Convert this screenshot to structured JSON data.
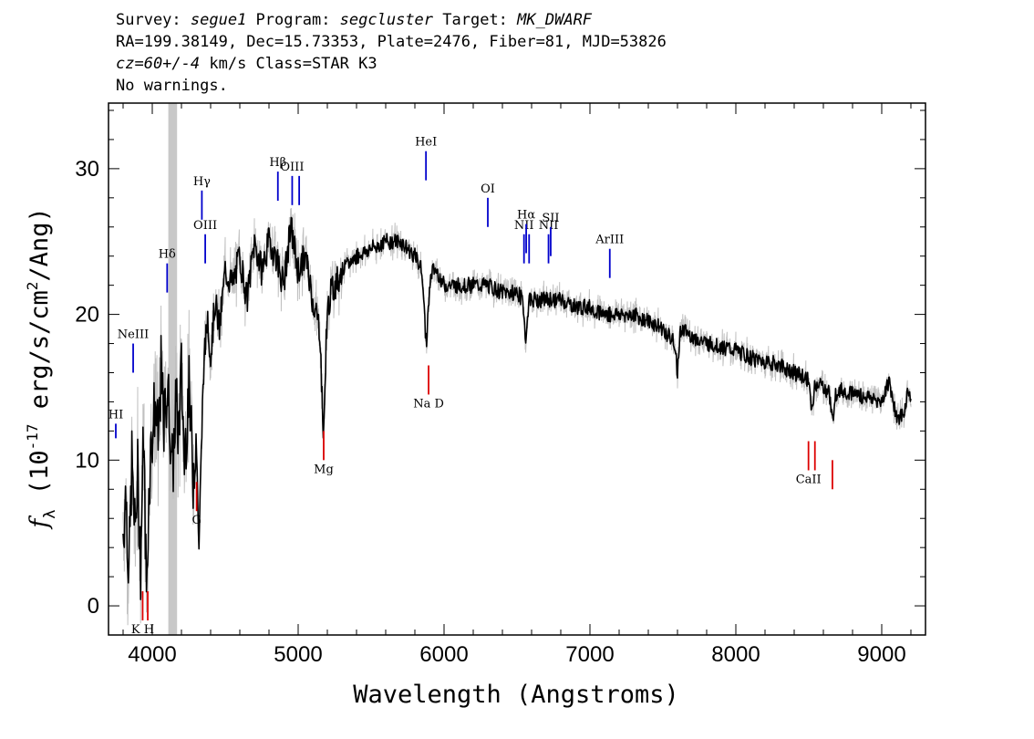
{
  "header": {
    "line1": {
      "survey_label": "Survey: ",
      "survey": "segue1",
      "program_label": " Program: ",
      "program": "segcluster",
      "target_label": " Target: ",
      "target": "MK_DWARF"
    },
    "line2": "RA=199.38149, Dec=15.73353, Plate=2476, Fiber=81, MJD=53826",
    "line3": {
      "cz": "cz=60+/-4",
      "rest": " km/s Class=STAR K3"
    },
    "line4": "No warnings."
  },
  "chart_data": {
    "type": "line",
    "xlabel": "Wavelength (Angstroms)",
    "ylabel_parts": {
      "f": "f",
      "sub": "λ",
      "open": " (10",
      "exp1": "-17",
      "mid": " erg/s/cm",
      "exp2": "2",
      "close": "/Ang)"
    },
    "xlim": [
      3700,
      9300
    ],
    "ylim": [
      -2,
      34.5
    ],
    "x_ticks": [
      4000,
      5000,
      6000,
      7000,
      8000,
      9000
    ],
    "x_tick_labels": [
      "4000",
      "5000",
      "6000",
      "7000",
      "8000",
      "9000"
    ],
    "y_ticks": [
      0,
      10,
      20,
      30
    ],
    "y_tick_labels": [
      "0",
      "10",
      "20",
      "30"
    ],
    "masked_band": [
      4110,
      4170
    ],
    "colors": {
      "flux": "#000000",
      "error": "#c0c0c0",
      "emission": "#0000cc",
      "absorption": "#dd0000",
      "mask": "#c8c8c8"
    },
    "series": [
      {
        "role": "flux",
        "x": [
          3800,
          3820,
          3840,
          3860,
          3880,
          3900,
          3920,
          3940,
          3960,
          3980,
          4000,
          4020,
          4040,
          4060,
          4080,
          4100,
          4120,
          4140,
          4160,
          4180,
          4200,
          4220,
          4250,
          4280,
          4300,
          4320,
          4350,
          4380,
          4400,
          4430,
          4460,
          4500,
          4550,
          4600,
          4650,
          4700,
          4750,
          4800,
          4850,
          4900,
          4950,
          5000,
          5050,
          5100,
          5150,
          5170,
          5180,
          5190,
          5210,
          5250,
          5300,
          5400,
          5500,
          5600,
          5700,
          5800,
          5850,
          5870,
          5880,
          5890,
          5900,
          5920,
          5950,
          6000,
          6100,
          6200,
          6300,
          6400,
          6500,
          6540,
          6562,
          6580,
          6600,
          6700,
          6800,
          6900,
          7000,
          7100,
          7200,
          7300,
          7400,
          7500,
          7580,
          7600,
          7620,
          7700,
          7800,
          7900,
          8000,
          8100,
          8200,
          8300,
          8400,
          8500,
          8520,
          8540,
          8560,
          8600,
          8640,
          8662,
          8680,
          8700,
          8800,
          8900,
          9000,
          9050,
          9100,
          9150,
          9180,
          9200
        ],
        "y": [
          5,
          8,
          2,
          10,
          5,
          9,
          3,
          12,
          1,
          9,
          12,
          14,
          11,
          16,
          12,
          15,
          13,
          9,
          14,
          12,
          16,
          10,
          15,
          9,
          12,
          4,
          16,
          20,
          17,
          21,
          19,
          23,
          22,
          24,
          21,
          25,
          23,
          25,
          24,
          22,
          26,
          23,
          24,
          21,
          19,
          12,
          13,
          18,
          21,
          22,
          23,
          24,
          24.5,
          25,
          25,
          24,
          23,
          19,
          18,
          20,
          22,
          23,
          23,
          22,
          22,
          22,
          22,
          21.5,
          21.5,
          21,
          18,
          21,
          21,
          21,
          21,
          20.5,
          20.5,
          20,
          20,
          20,
          19.5,
          19,
          18,
          16,
          19,
          18.5,
          18,
          17.8,
          17.5,
          17,
          16.8,
          16.5,
          16,
          15.5,
          13,
          15,
          15.3,
          15,
          14.7,
          12.5,
          14.5,
          14.8,
          14.6,
          14.3,
          14,
          15.5,
          13,
          13,
          14.8,
          14.5
        ]
      }
    ],
    "emission_lines": [
      {
        "label": "HI",
        "x": 3750,
        "y1": 12.5,
        "y2": 11.5
      },
      {
        "label": "NeIII",
        "x": 3869,
        "y1": 18,
        "y2": 16
      },
      {
        "label": "Hδ",
        "x": 4102,
        "y1": 23.5,
        "y2": 21.5
      },
      {
        "label": "Hγ",
        "x": 4340,
        "y1": 28.5,
        "y2": 26.5
      },
      {
        "label": "OIII",
        "x": 4363,
        "y1": 25.5,
        "y2": 23.5
      },
      {
        "label": "Hβ",
        "x": 4861,
        "y1": 29.8,
        "y2": 27.8
      },
      {
        "label": "OIII",
        "x": 4959,
        "y1": 29.5,
        "y2": 27.5
      },
      {
        "label": "",
        "x": 5007,
        "y1": 29.5,
        "y2": 27.5
      },
      {
        "label": "HeI",
        "x": 5876,
        "y1": 31.2,
        "y2": 29.2
      },
      {
        "label": "OI",
        "x": 6300,
        "y1": 28,
        "y2": 26
      },
      {
        "label": "NII",
        "x": 6548,
        "y1": 25.5,
        "y2": 23.5
      },
      {
        "label": "Hα",
        "x": 6563,
        "y1": 26.2,
        "y2": 24.2
      },
      {
        "label": "",
        "x": 6583,
        "y1": 25.5,
        "y2": 23.5
      },
      {
        "label": "NII",
        "x": 6716,
        "y1": 25.5,
        "y2": 23.5
      },
      {
        "label": "SII",
        "x": 6731,
        "y1": 26,
        "y2": 24
      },
      {
        "label": "ArIII",
        "x": 7136,
        "y1": 24.5,
        "y2": 22.5
      }
    ],
    "absorption_lines": [
      {
        "label": "K H",
        "x": 3934,
        "y1": 1,
        "y2": -1
      },
      {
        "label": "",
        "x": 3969,
        "y1": 1,
        "y2": -1
      },
      {
        "label": "G",
        "x": 4304,
        "y1": 8.5,
        "y2": 6.5
      },
      {
        "label": "Mg",
        "x": 5175,
        "y1": 12,
        "y2": 10
      },
      {
        "label": "Na D",
        "x": 5894,
        "y1": 16.5,
        "y2": 14.5
      },
      {
        "label": "CaII",
        "x": 8498,
        "y1": 11.3,
        "y2": 9.3
      },
      {
        "label": "",
        "x": 8542,
        "y1": 11.3,
        "y2": 9.3
      },
      {
        "label": "",
        "x": 8662,
        "y1": 10,
        "y2": 8
      }
    ]
  }
}
